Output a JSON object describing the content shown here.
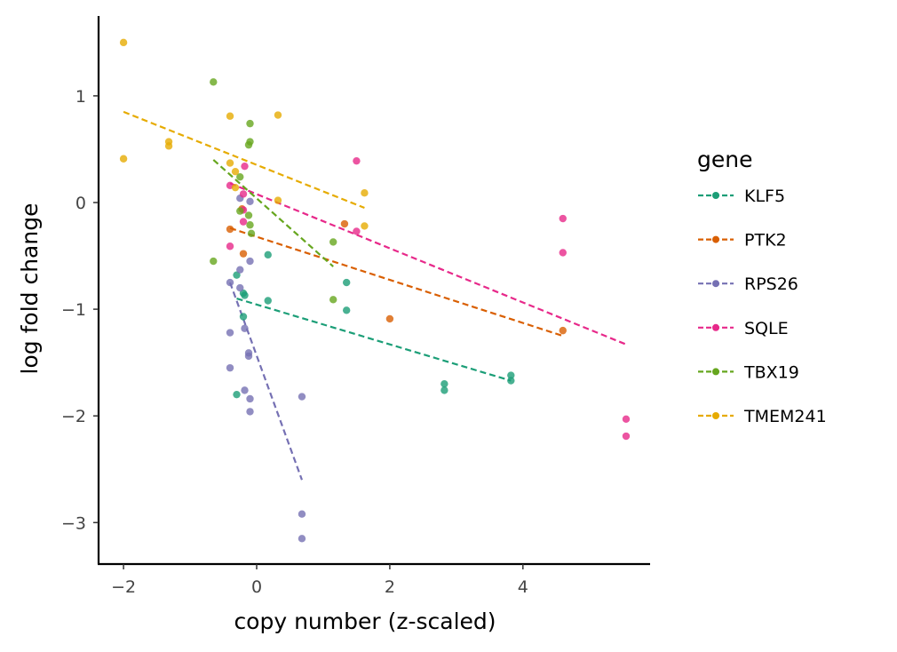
{
  "chart_data": {
    "type": "scatter",
    "xlabel": "copy number (z-scaled)",
    "ylabel": "log fold change",
    "xlim": [
      -2.4,
      5.85
    ],
    "ylim": [
      -3.4,
      1.75
    ],
    "xticks": [
      -2,
      0,
      2,
      4
    ],
    "yticks": [
      1,
      0,
      -1,
      -2,
      -3
    ],
    "xtick_labels": [
      "−2",
      "0",
      "2",
      "4"
    ],
    "ytick_labels": [
      "1",
      "0",
      "−1",
      "−2",
      "−3"
    ],
    "grid": false,
    "legend_title": "gene",
    "legend_position": "right",
    "series": [
      {
        "name": "KLF5",
        "color": "#1b9e77",
        "points": [
          [
            -0.3,
            -0.68
          ],
          [
            -0.2,
            -0.85
          ],
          [
            -0.18,
            -0.87
          ],
          [
            -0.2,
            -1.07
          ],
          [
            0.17,
            -0.49
          ],
          [
            0.17,
            -0.92
          ],
          [
            1.35,
            -0.75
          ],
          [
            1.35,
            -1.01
          ],
          [
            2.82,
            -1.7
          ],
          [
            2.82,
            -1.76
          ],
          [
            3.82,
            -1.62
          ],
          [
            3.82,
            -1.67
          ],
          [
            -0.3,
            -1.8
          ]
        ],
        "trend": [
          [
            -0.3,
            -0.9
          ],
          [
            3.82,
            -1.67
          ]
        ]
      },
      {
        "name": "PTK2",
        "color": "#d95f02",
        "points": [
          [
            -0.4,
            -0.25
          ],
          [
            -0.2,
            -0.48
          ],
          [
            -0.22,
            -0.06
          ],
          [
            1.32,
            -0.2
          ],
          [
            2.0,
            -1.09
          ],
          [
            4.6,
            -1.2
          ]
        ],
        "trend": [
          [
            -0.4,
            -0.24
          ],
          [
            4.6,
            -1.25
          ]
        ]
      },
      {
        "name": "RPS26",
        "color": "#7570b3",
        "points": [
          [
            -0.4,
            -0.75
          ],
          [
            -0.25,
            -0.8
          ],
          [
            -0.25,
            -0.63
          ],
          [
            -0.1,
            -0.55
          ],
          [
            -0.25,
            0.04
          ],
          [
            -0.1,
            0.01
          ],
          [
            -0.4,
            -1.22
          ],
          [
            -0.18,
            -1.18
          ],
          [
            -0.12,
            -1.41
          ],
          [
            -0.12,
            -1.44
          ],
          [
            -0.4,
            -1.55
          ],
          [
            -0.18,
            -1.76
          ],
          [
            -0.1,
            -1.84
          ],
          [
            -0.1,
            -1.96
          ],
          [
            0.68,
            -1.82
          ],
          [
            0.68,
            -2.92
          ],
          [
            0.68,
            -3.15
          ]
        ],
        "trend": [
          [
            -0.4,
            -0.75
          ],
          [
            0.68,
            -2.6
          ]
        ]
      },
      {
        "name": "SQLE",
        "color": "#e7298a",
        "points": [
          [
            -0.4,
            0.16
          ],
          [
            -0.4,
            -0.41
          ],
          [
            -0.18,
            0.34
          ],
          [
            -0.2,
            0.08
          ],
          [
            -0.2,
            -0.07
          ],
          [
            -0.2,
            -0.18
          ],
          [
            1.5,
            0.39
          ],
          [
            1.5,
            -0.27
          ],
          [
            4.6,
            -0.15
          ],
          [
            4.6,
            -0.47
          ],
          [
            5.55,
            -2.03
          ],
          [
            5.55,
            -2.19
          ]
        ],
        "trend": [
          [
            -0.4,
            0.18
          ],
          [
            5.55,
            -1.33
          ]
        ]
      },
      {
        "name": "TBX19",
        "color": "#66a61e",
        "points": [
          [
            -0.65,
            1.13
          ],
          [
            -0.1,
            0.74
          ],
          [
            -0.1,
            0.57
          ],
          [
            -0.12,
            0.54
          ],
          [
            -0.25,
            0.24
          ],
          [
            -0.25,
            -0.08
          ],
          [
            -0.12,
            -0.12
          ],
          [
            -0.1,
            -0.21
          ],
          [
            -0.08,
            -0.29
          ],
          [
            -0.65,
            -0.55
          ],
          [
            1.15,
            -0.37
          ],
          [
            1.15,
            -0.91
          ]
        ],
        "trend": [
          [
            -0.65,
            0.4
          ],
          [
            1.15,
            -0.6
          ]
        ]
      },
      {
        "name": "TMEM241",
        "color": "#e6ab02",
        "points": [
          [
            -2.0,
            1.5
          ],
          [
            -2.0,
            0.41
          ],
          [
            -1.32,
            0.57
          ],
          [
            -1.32,
            0.53
          ],
          [
            -0.4,
            0.81
          ],
          [
            -0.4,
            0.37
          ],
          [
            -0.32,
            0.14
          ],
          [
            -0.32,
            0.29
          ],
          [
            0.32,
            0.82
          ],
          [
            0.32,
            0.02
          ],
          [
            1.62,
            0.09
          ],
          [
            1.62,
            -0.22
          ]
        ],
        "trend": [
          [
            -2.0,
            0.85
          ],
          [
            1.62,
            -0.05
          ]
        ]
      }
    ]
  }
}
